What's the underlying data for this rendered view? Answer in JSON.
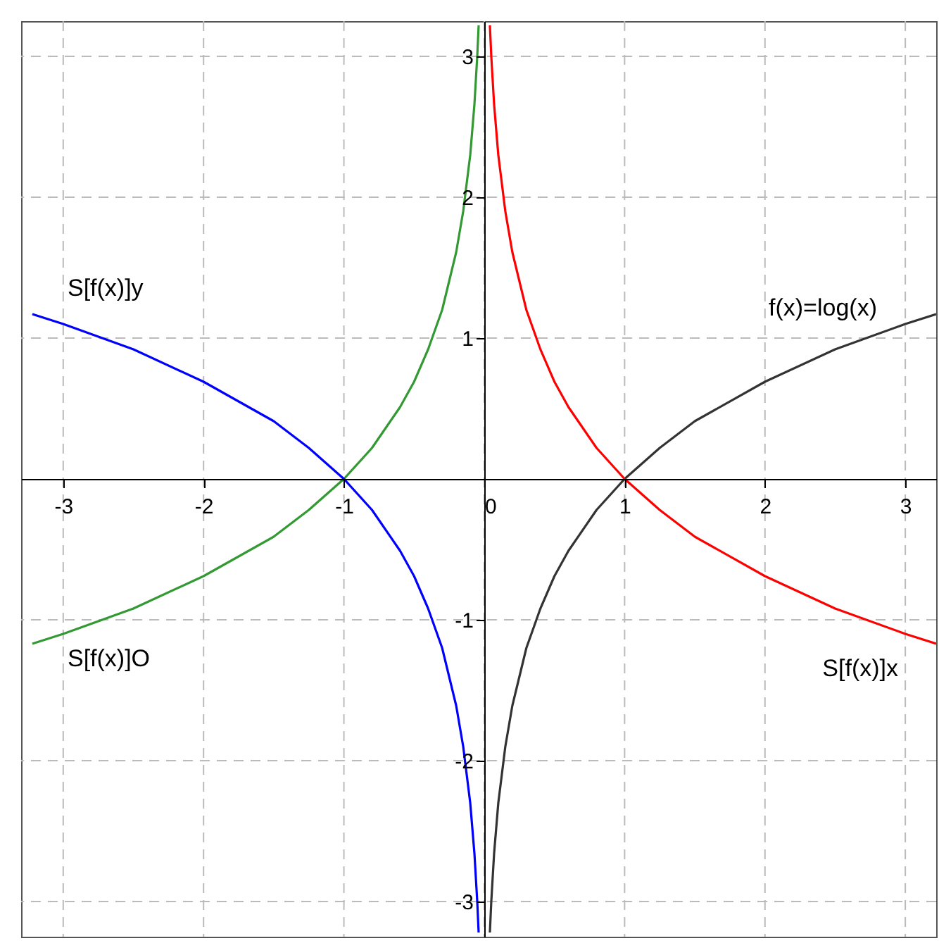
{
  "chart_data": {
    "type": "line",
    "xlim": [
      -3.3,
      3.22
    ],
    "ylim": [
      -3.25,
      3.25
    ],
    "xticks": [
      -3,
      -2,
      -1,
      0,
      1,
      2,
      3
    ],
    "yticks": [
      -3,
      -2,
      -1,
      1,
      2,
      3
    ],
    "grid": true,
    "line_style": "solid",
    "marker": "none",
    "series": [
      {
        "name": "f(x)=log(x)",
        "color": "#333333",
        "x": [
          0.04,
          0.05,
          0.07,
          0.1,
          0.15,
          0.2,
          0.3,
          0.4,
          0.5,
          0.6,
          0.8,
          1,
          1.25,
          1.5,
          2,
          2.5,
          3,
          3.22
        ],
        "values": [
          -3.22,
          -3.0,
          -2.66,
          -2.3,
          -1.9,
          -1.61,
          -1.2,
          -0.92,
          -0.69,
          -0.51,
          -0.22,
          0,
          0.22,
          0.41,
          0.69,
          0.92,
          1.1,
          1.17
        ]
      },
      {
        "name": "S[f(x)]x",
        "color": "#ff0000",
        "x": [
          0.04,
          0.05,
          0.07,
          0.1,
          0.15,
          0.2,
          0.3,
          0.4,
          0.5,
          0.6,
          0.8,
          1,
          1.25,
          1.5,
          2,
          2.5,
          3,
          3.22
        ],
        "values": [
          3.22,
          3.0,
          2.66,
          2.3,
          1.9,
          1.61,
          1.2,
          0.92,
          0.69,
          0.51,
          0.22,
          0,
          -0.22,
          -0.41,
          -0.69,
          -0.92,
          -1.1,
          -1.17
        ]
      },
      {
        "name": "S[f(x)]O",
        "color": "#339933",
        "x": [
          -3.22,
          -3,
          -2.5,
          -2,
          -1.5,
          -1.25,
          -1,
          -0.8,
          -0.6,
          -0.5,
          -0.4,
          -0.3,
          -0.2,
          -0.15,
          -0.1,
          -0.07,
          -0.05,
          -0.04
        ],
        "values": [
          -1.17,
          -1.1,
          -0.92,
          -0.69,
          -0.41,
          -0.22,
          0,
          0.22,
          0.51,
          0.69,
          0.92,
          1.2,
          1.61,
          1.9,
          2.3,
          2.66,
          3.0,
          3.22
        ]
      },
      {
        "name": "S[f(x)]y",
        "color": "#0000ff",
        "x": [
          -3.22,
          -3,
          -2.5,
          -2,
          -1.5,
          -1.25,
          -1,
          -0.8,
          -0.6,
          -0.5,
          -0.4,
          -0.3,
          -0.2,
          -0.15,
          -0.1,
          -0.07,
          -0.05,
          -0.04
        ],
        "values": [
          1.17,
          1.1,
          0.92,
          0.69,
          0.41,
          0.22,
          0,
          -0.22,
          -0.51,
          -0.69,
          -0.92,
          -1.2,
          -1.61,
          -1.9,
          -2.3,
          -2.66,
          -3.0,
          -3.22
        ]
      }
    ]
  }
}
